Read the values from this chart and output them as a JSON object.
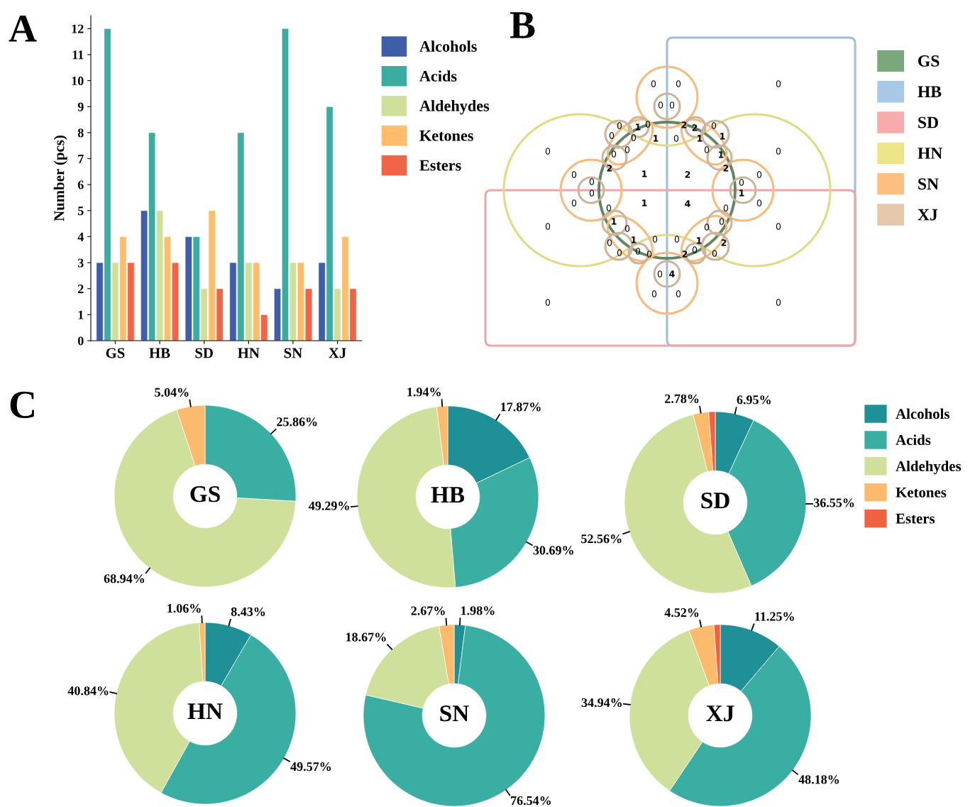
{
  "chart_data": [
    {
      "type": "bar",
      "title": "A",
      "ylabel": "Number (pcs)",
      "categories": [
        "GS",
        "HB",
        "SD",
        "HN",
        "SN",
        "XJ"
      ],
      "series": [
        {
          "name": "Alcohols",
          "color": "#3f5ea8",
          "values": [
            3,
            5,
            4,
            3,
            2,
            3
          ]
        },
        {
          "name": "Acids",
          "color": "#3aada0",
          "values": [
            12,
            8,
            4,
            8,
            12,
            9
          ]
        },
        {
          "name": "Aldehydes",
          "color": "#cfe09b",
          "values": [
            3,
            5,
            2,
            3,
            3,
            2
          ]
        },
        {
          "name": "Ketones",
          "color": "#fdbd6a",
          "values": [
            4,
            4,
            5,
            3,
            3,
            4
          ]
        },
        {
          "name": "Esters",
          "color": "#f06545",
          "values": [
            3,
            3,
            2,
            1,
            2,
            2
          ]
        }
      ],
      "ylim": [
        0,
        12.5
      ],
      "yticks": [
        0,
        1,
        2,
        3,
        4,
        5,
        6,
        7,
        8,
        9,
        10,
        11,
        12
      ],
      "legend": "right",
      "grid": false
    },
    {
      "type": "other",
      "title": "B",
      "categories": [
        "GS",
        "HB",
        "SD",
        "HN",
        "SN",
        "XJ"
      ],
      "colors": [
        "#7aa87a",
        "#a8c8e8",
        "#f9aaaa",
        "#ede58a",
        "#fdbf80",
        "#e2c8a8"
      ],
      "annotations": [
        "0",
        "0",
        "0",
        "0",
        "0",
        "0",
        "0",
        "0",
        "0",
        "0",
        "0",
        "0",
        "1",
        "0",
        "0",
        "0",
        "1",
        "0",
        "0",
        "2",
        "1",
        "0",
        "0",
        "0",
        "0",
        "2",
        "2",
        "0",
        "0",
        "1",
        "1",
        "0",
        "1",
        "2",
        "2",
        "0",
        "0",
        "1",
        "0",
        "1",
        "0",
        "1",
        "0",
        "0",
        "1",
        "0",
        "0",
        "0",
        "0",
        "0",
        "4",
        "0",
        "0",
        "4",
        "0",
        "0",
        "0",
        "0",
        "1",
        "2",
        "0",
        "2",
        "0"
      ]
    },
    {
      "type": "donut",
      "title": "GS",
      "annotations": [
        "C"
      ],
      "categories": [
        "Alcohols",
        "Acids",
        "Aldehydes",
        "Ketones",
        "Esters"
      ],
      "colors": [
        "#1f9196",
        "#3aaea3",
        "#cfe09a",
        "#fcbb6c",
        "#f0623f"
      ],
      "values": [
        null,
        25.86,
        68.94,
        5.04,
        null
      ],
      "value_labels": [
        null,
        "25.86%",
        "68.94%",
        "5.04%",
        null
      ],
      "legend": "right"
    },
    {
      "type": "donut",
      "title": "HB",
      "colors": [
        "#1f9196",
        "#3aaea3",
        "#cfe09a",
        "#fcbb6c",
        "#f0623f"
      ],
      "values": [
        17.87,
        30.69,
        49.29,
        1.94,
        null
      ],
      "value_labels": [
        "17.87%",
        "30.69%",
        "49.29%",
        "1.94%",
        null
      ]
    },
    {
      "type": "donut",
      "title": "SD",
      "colors": [
        "#1f9196",
        "#3aaea3",
        "#cfe09a",
        "#fcbb6c",
        "#f0623f"
      ],
      "values": [
        6.95,
        36.55,
        52.56,
        2.78,
        1.16
      ],
      "value_labels": [
        "6.95%",
        "36.55%",
        "52.56%",
        "2.78%",
        null
      ]
    },
    {
      "type": "donut",
      "title": "HN",
      "colors": [
        "#1f9196",
        "#3aaea3",
        "#cfe09a",
        "#fcbb6c",
        "#f0623f"
      ],
      "values": [
        8.43,
        49.57,
        40.84,
        1.06,
        null
      ],
      "value_labels": [
        "8.43%",
        "49.57%",
        "40.84%",
        "1.06%",
        null
      ]
    },
    {
      "type": "donut",
      "title": "SN",
      "colors": [
        "#1f9196",
        "#3aaea3",
        "#cfe09a",
        "#fcbb6c",
        "#f0623f"
      ],
      "values": [
        1.98,
        76.54,
        18.67,
        2.67,
        null
      ],
      "value_labels": [
        "1.98%",
        "76.54%",
        "18.67%",
        "2.67%",
        null
      ]
    },
    {
      "type": "donut",
      "title": "XJ",
      "colors": [
        "#1f9196",
        "#3aaea3",
        "#cfe09a",
        "#fcbb6c",
        "#f0623f"
      ],
      "values": [
        11.25,
        48.18,
        34.94,
        4.52,
        1.11
      ],
      "value_labels": [
        "11.25%",
        "48.18%",
        "34.94%",
        "4.52%",
        null
      ]
    }
  ]
}
